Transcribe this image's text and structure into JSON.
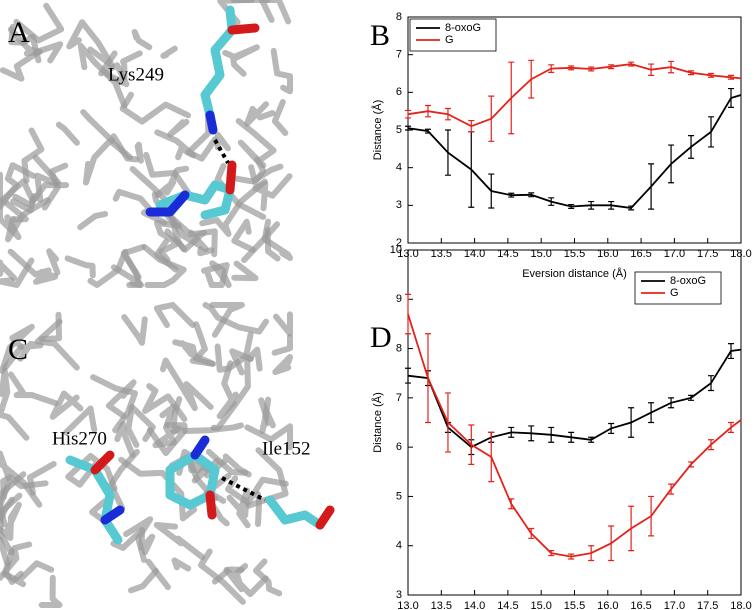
{
  "images": [
    {
      "label": "A",
      "annotations": [
        "Lys249"
      ]
    },
    {
      "label": "C",
      "annotations": [
        "His270",
        "Ile152"
      ]
    }
  ],
  "chart_data": [
    {
      "type": "line",
      "panel_label": "B",
      "xlabel": "Eversion distance (Å)",
      "ylabel": "Distance (Å)",
      "legend": "upper left",
      "xlim": [
        13,
        18
      ],
      "ylim": [
        2,
        8
      ],
      "xticks": [
        {
          "value": 13,
          "label": "13.0"
        },
        {
          "value": 13.5,
          "label": "13.5"
        },
        {
          "value": 14,
          "label": "14.0"
        },
        {
          "value": 14.5,
          "label": "14.5"
        },
        {
          "value": 15,
          "label": "15.0"
        },
        {
          "value": 15.5,
          "label": "15.5"
        },
        {
          "value": 16,
          "label": "16.0"
        },
        {
          "value": 16.5,
          "label": "16.5"
        },
        {
          "value": 17,
          "label": "17.0"
        },
        {
          "value": 17.5,
          "label": "17.5"
        },
        {
          "value": 18,
          "label": "18.0"
        }
      ],
      "yticks": [
        2,
        3,
        4,
        5,
        6,
        7,
        8
      ],
      "x": [
        13.0,
        13.3,
        13.6,
        13.95,
        14.25,
        14.55,
        14.85,
        15.15,
        15.45,
        15.75,
        16.05,
        16.35,
        16.65,
        16.95,
        17.25,
        17.55,
        17.85,
        18.0
      ],
      "series": [
        {
          "name": "8-oxoG",
          "color": "#000000",
          "values": [
            5.05,
            4.97,
            4.4,
            3.95,
            3.38,
            3.27,
            3.28,
            3.1,
            2.97,
            3.0,
            3.0,
            2.93,
            3.5,
            4.1,
            4.55,
            4.95,
            5.85,
            5.93
          ],
          "errors": [
            0.05,
            0.05,
            0.6,
            1.0,
            0.45,
            0.05,
            0.05,
            0.1,
            0.05,
            0.1,
            0.1,
            0.05,
            0.6,
            0.5,
            0.3,
            0.4,
            0.25,
            0
          ]
        },
        {
          "name": "G",
          "color": "#e3231b",
          "values": [
            5.42,
            5.5,
            5.42,
            5.1,
            5.3,
            5.85,
            6.35,
            6.63,
            6.65,
            6.62,
            6.68,
            6.75,
            6.6,
            6.67,
            6.52,
            6.45,
            6.4,
            6.37
          ],
          "errors": [
            0.1,
            0.15,
            0.15,
            0.15,
            0.6,
            0.95,
            0.5,
            0.1,
            0.05,
            0.05,
            0.05,
            0.05,
            0.15,
            0.15,
            0.05,
            0.05,
            0.05,
            0
          ]
        }
      ]
    },
    {
      "type": "line",
      "panel_label": "D",
      "xlabel": "Eversion distance (Å)",
      "ylabel": "Distance (Å)",
      "legend": "upper right",
      "xlim": [
        13,
        18
      ],
      "ylim": [
        3,
        10
      ],
      "xticks": [
        {
          "value": 13,
          "label": "13.0"
        },
        {
          "value": 13.5,
          "label": "13.5"
        },
        {
          "value": 14,
          "label": "14.0"
        },
        {
          "value": 14.5,
          "label": "14.5"
        },
        {
          "value": 15,
          "label": "15.0"
        },
        {
          "value": 15.5,
          "label": "15.5"
        },
        {
          "value": 16,
          "label": "16.0"
        },
        {
          "value": 16.5,
          "label": "16.5"
        },
        {
          "value": 17,
          "label": "17.0"
        },
        {
          "value": 17.5,
          "label": "17.5"
        },
        {
          "value": 18,
          "label": "18.0"
        }
      ],
      "yticks": [
        3,
        4,
        5,
        6,
        7,
        8,
        9,
        10
      ],
      "x": [
        13.0,
        13.3,
        13.6,
        13.95,
        14.25,
        14.55,
        14.85,
        15.15,
        15.45,
        15.75,
        16.05,
        16.35,
        16.65,
        16.95,
        17.25,
        17.55,
        17.85,
        18.0
      ],
      "series": [
        {
          "name": "8-oxoG",
          "color": "#000000",
          "values": [
            7.45,
            7.4,
            6.4,
            6.0,
            6.2,
            6.3,
            6.28,
            6.25,
            6.2,
            6.15,
            6.38,
            6.5,
            6.7,
            6.9,
            7.0,
            7.3,
            7.95,
            7.98
          ],
          "errors": [
            0.15,
            0.15,
            0.1,
            0.15,
            0.1,
            0.1,
            0.15,
            0.15,
            0.1,
            0.05,
            0.1,
            0.3,
            0.2,
            0.1,
            0.05,
            0.15,
            0.15,
            0
          ]
        },
        {
          "name": "G",
          "color": "#e3231b",
          "values": [
            8.7,
            7.4,
            6.5,
            6.05,
            5.8,
            4.85,
            4.25,
            3.85,
            3.78,
            3.85,
            4.05,
            4.35,
            4.6,
            5.15,
            5.65,
            6.05,
            6.4,
            6.55
          ],
          "errors": [
            0.4,
            0.9,
            0.6,
            0.4,
            0.5,
            0.1,
            0.1,
            0.05,
            0.05,
            0.15,
            0.35,
            0.45,
            0.4,
            0.1,
            0.05,
            0.1,
            0.1,
            0
          ]
        }
      ]
    }
  ]
}
